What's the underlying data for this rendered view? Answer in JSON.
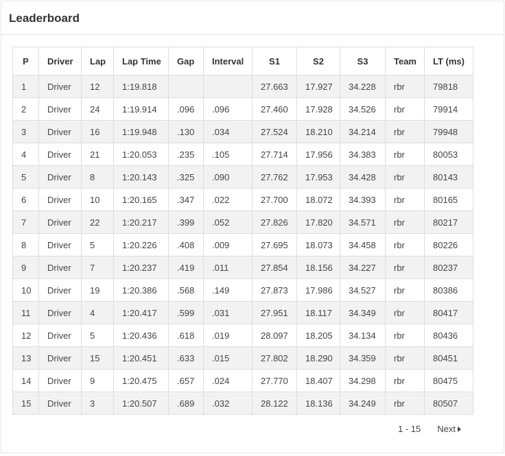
{
  "panel": {
    "title": "Leaderboard"
  },
  "table": {
    "columns": [
      "P",
      "Driver",
      "Lap",
      "Lap Time",
      "Gap",
      "Interval",
      "S1",
      "S2",
      "S3",
      "Team",
      "LT (ms)"
    ],
    "rows": [
      [
        "1",
        "Driver",
        "12",
        "1:19.818",
        "",
        "",
        "27.663",
        "17.927",
        "34.228",
        "rbr",
        "79818"
      ],
      [
        "2",
        "Driver",
        "24",
        "1:19.914",
        ".096",
        ".096",
        "27.460",
        "17.928",
        "34.526",
        "rbr",
        "79914"
      ],
      [
        "3",
        "Driver",
        "16",
        "1:19.948",
        ".130",
        ".034",
        "27.524",
        "18.210",
        "34.214",
        "rbr",
        "79948"
      ],
      [
        "4",
        "Driver",
        "21",
        "1:20.053",
        ".235",
        ".105",
        "27.714",
        "17.956",
        "34.383",
        "rbr",
        "80053"
      ],
      [
        "5",
        "Driver",
        "8",
        "1:20.143",
        ".325",
        ".090",
        "27.762",
        "17.953",
        "34.428",
        "rbr",
        "80143"
      ],
      [
        "6",
        "Driver",
        "10",
        "1:20.165",
        ".347",
        ".022",
        "27.700",
        "18.072",
        "34.393",
        "rbr",
        "80165"
      ],
      [
        "7",
        "Driver",
        "22",
        "1:20.217",
        ".399",
        ".052",
        "27.826",
        "17.820",
        "34.571",
        "rbr",
        "80217"
      ],
      [
        "8",
        "Driver",
        "5",
        "1:20.226",
        ".408",
        ".009",
        "27.695",
        "18.073",
        "34.458",
        "rbr",
        "80226"
      ],
      [
        "9",
        "Driver",
        "7",
        "1:20.237",
        ".419",
        ".011",
        "27.854",
        "18.156",
        "34.227",
        "rbr",
        "80237"
      ],
      [
        "10",
        "Driver",
        "19",
        "1:20.386",
        ".568",
        ".149",
        "27.873",
        "17.986",
        "34.527",
        "rbr",
        "80386"
      ],
      [
        "11",
        "Driver",
        "4",
        "1:20.417",
        ".599",
        ".031",
        "27.951",
        "18.117",
        "34.349",
        "rbr",
        "80417"
      ],
      [
        "12",
        "Driver",
        "5",
        "1:20.436",
        ".618",
        ".019",
        "28.097",
        "18.205",
        "34.134",
        "rbr",
        "80436"
      ],
      [
        "13",
        "Driver",
        "15",
        "1:20.451",
        ".633",
        ".015",
        "27.802",
        "18.290",
        "34.359",
        "rbr",
        "80451"
      ],
      [
        "14",
        "Driver",
        "9",
        "1:20.475",
        ".657",
        ".024",
        "27.770",
        "18.407",
        "34.298",
        "rbr",
        "80475"
      ],
      [
        "15",
        "Driver",
        "3",
        "1:20.507",
        ".689",
        ".032",
        "28.122",
        "18.136",
        "34.249",
        "rbr",
        "80507"
      ]
    ]
  },
  "pagination": {
    "range": "1 - 15",
    "next_label": "Next",
    "next_icon": "triangle-right-icon"
  }
}
